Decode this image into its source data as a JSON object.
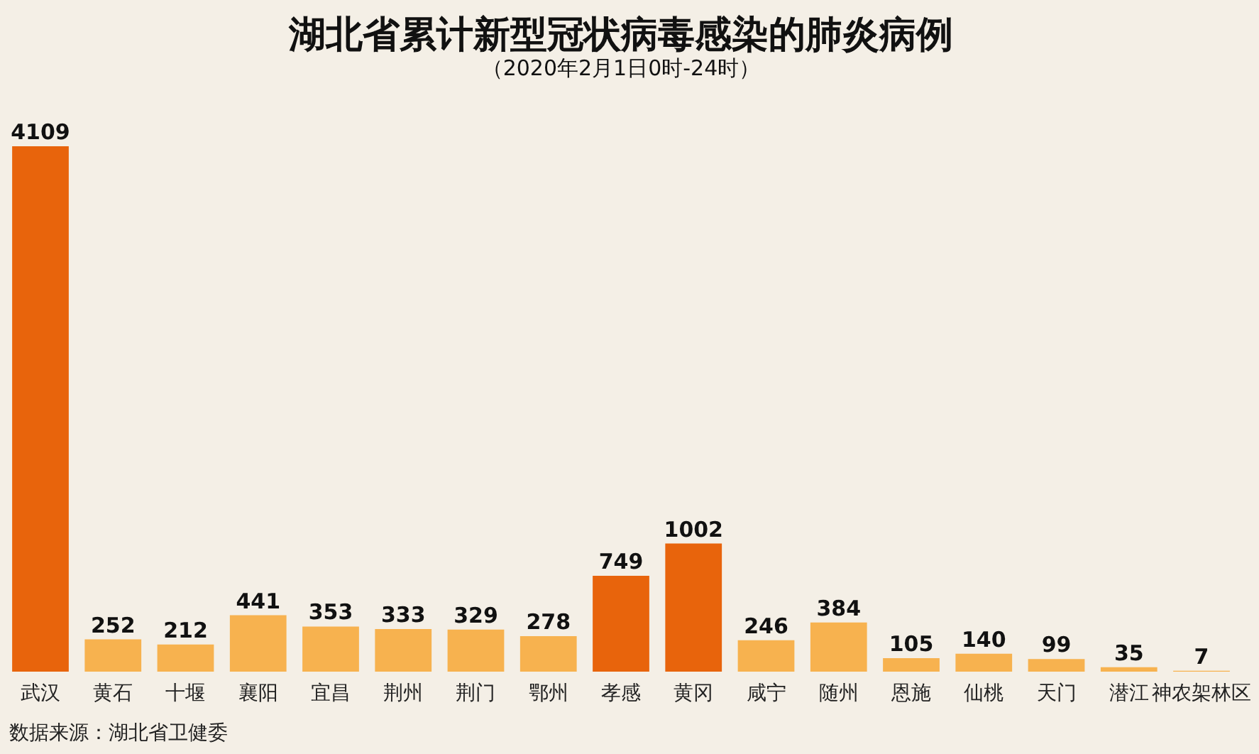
{
  "chart_data": {
    "type": "bar",
    "title": "湖北省累计新型冠状病毒感染的肺炎病例",
    "subtitle": "（2020年2月1日0时-24时）",
    "categories": [
      "武汉",
      "黄石",
      "十堰",
      "襄阳",
      "宜昌",
      "荆州",
      "荆门",
      "鄂州",
      "孝感",
      "黄冈",
      "咸宁",
      "随州",
      "恩施",
      "仙桃",
      "天门",
      "潜江",
      "神农架林区"
    ],
    "values": [
      4109,
      252,
      212,
      441,
      353,
      333,
      329,
      278,
      749,
      1002,
      246,
      384,
      105,
      140,
      99,
      35,
      7
    ],
    "colors": [
      "#e8640c",
      "#f7b24f",
      "#f7b24f",
      "#f7b24f",
      "#f7b24f",
      "#f7b24f",
      "#f7b24f",
      "#f7b24f",
      "#e8640c",
      "#e8640c",
      "#f7b24f",
      "#f7b24f",
      "#f7b24f",
      "#f7b24f",
      "#f7b24f",
      "#f7b24f",
      "#f7b24f"
    ],
    "data_labels": true,
    "grid": false,
    "annotations": [
      "数据来源：湖北省卫健委"
    ]
  }
}
